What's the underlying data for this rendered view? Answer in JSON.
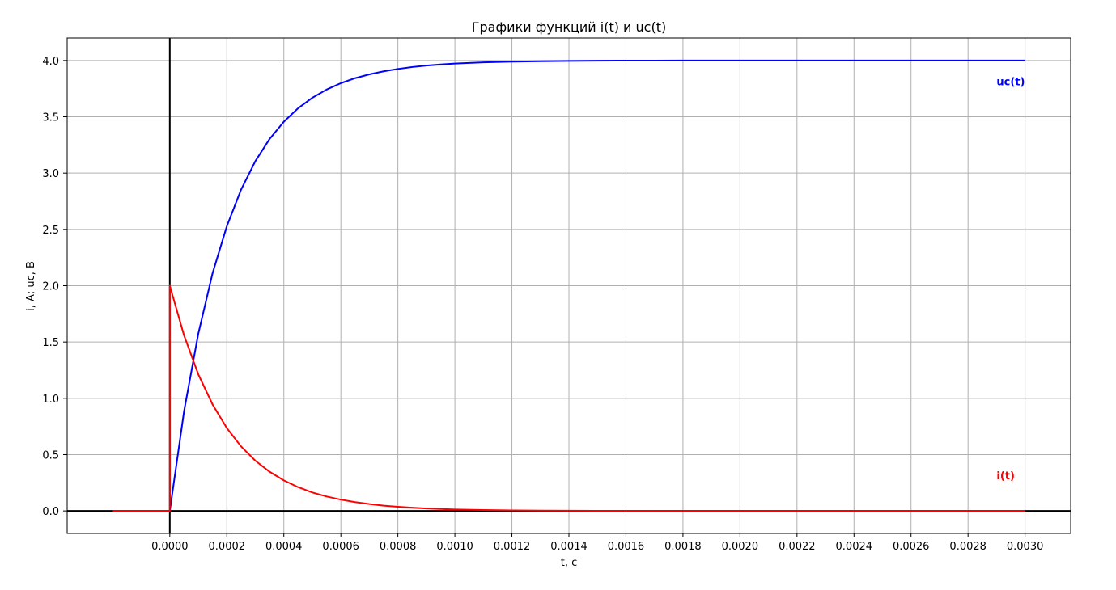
{
  "chart_data": {
    "type": "line",
    "title": "Графики функций i(t) и uc(t)",
    "xlabel": "t, c",
    "ylabel": "i, A; uc, B",
    "xlim": [
      -0.00036,
      0.00316
    ],
    "ylim": [
      -0.2,
      4.2
    ],
    "xticks": [
      "0.0000",
      "0.0002",
      "0.0004",
      "0.0006",
      "0.0008",
      "0.0010",
      "0.0012",
      "0.0014",
      "0.0016",
      "0.0018",
      "0.0020",
      "0.0022",
      "0.0024",
      "0.0026",
      "0.0028",
      "0.0030"
    ],
    "yticks": [
      "0.0",
      "0.5",
      "1.0",
      "1.5",
      "2.0",
      "2.5",
      "3.0",
      "3.5",
      "4.0"
    ],
    "grid": true,
    "colors": {
      "uc": "#0000ff",
      "i": "#ff0000",
      "axes_lines": "#000000",
      "grid": "#b0b0b0"
    },
    "series": [
      {
        "name": "uc(t)",
        "x": [
          0,
          5e-05,
          0.0001,
          0.00015,
          0.0002,
          0.00025,
          0.0003,
          0.00035,
          0.0004,
          0.00045,
          0.0005,
          0.00055,
          0.0006,
          0.00065,
          0.0007,
          0.00075,
          0.0008,
          0.00085,
          0.0009,
          0.00095,
          0.001,
          0.0011,
          0.0012,
          0.0013,
          0.0014,
          0.0015,
          0.0016,
          0.0017,
          0.0018,
          0.0019,
          0.002,
          0.0021,
          0.0022,
          0.0023,
          0.0024,
          0.0025,
          0.0026,
          0.0027,
          0.0028,
          0.0029,
          0.003
        ],
        "y": [
          0,
          0.885,
          1.574,
          2.111,
          2.528,
          2.853,
          3.106,
          3.303,
          3.456,
          3.576,
          3.669,
          3.742,
          3.799,
          3.843,
          3.877,
          3.904,
          3.925,
          3.942,
          3.955,
          3.965,
          3.973,
          3.984,
          3.99,
          3.994,
          3.996,
          3.998,
          3.999,
          3.999,
          4.0,
          4.0,
          4.0,
          4.0,
          4.0,
          4.0,
          4.0,
          4.0,
          4.0,
          4.0,
          4.0,
          4.0,
          4.0
        ]
      },
      {
        "name": "i(t)",
        "x": [
          -0.0002,
          0,
          0,
          5e-05,
          0.0001,
          0.00015,
          0.0002,
          0.00025,
          0.0003,
          0.00035,
          0.0004,
          0.00045,
          0.0005,
          0.00055,
          0.0006,
          0.00065,
          0.0007,
          0.00075,
          0.0008,
          0.00085,
          0.0009,
          0.00095,
          0.001,
          0.0011,
          0.0012,
          0.0013,
          0.0014,
          0.0015,
          0.0016,
          0.0018,
          0.002,
          0.0022,
          0.0024,
          0.0026,
          0.0028,
          0.003
        ],
        "y": [
          0,
          0,
          2.0,
          1.558,
          1.213,
          0.945,
          0.736,
          0.573,
          0.446,
          0.348,
          0.271,
          0.211,
          0.164,
          0.128,
          0.1,
          0.078,
          0.061,
          0.047,
          0.037,
          0.029,
          0.022,
          0.017,
          0.013,
          0.008,
          0.005,
          0.003,
          0.002,
          0.001,
          0.001,
          0,
          0,
          0,
          0,
          0,
          0,
          0
        ]
      }
    ],
    "annotations": [
      {
        "text": "uc(t)",
        "x": 0.0029,
        "y": 3.78,
        "color": "#0000ff"
      },
      {
        "text": "i(t)",
        "x": 0.0029,
        "y": 0.28,
        "color": "#ff0000"
      }
    ]
  }
}
